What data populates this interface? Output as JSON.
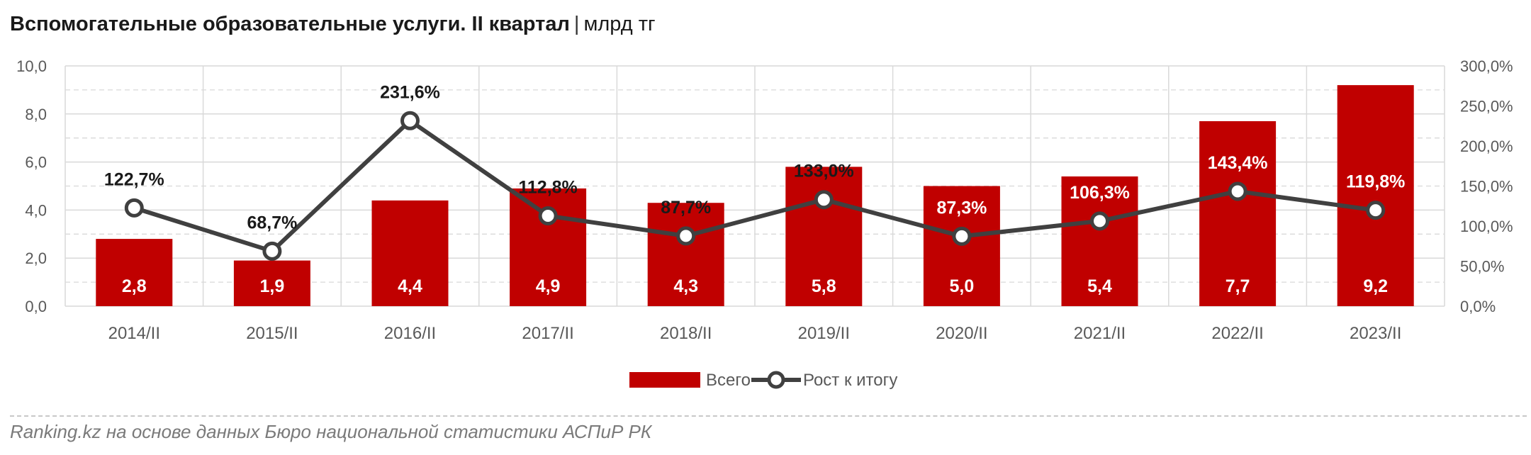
{
  "header": {
    "title": "Вспомогательные образовательные услуги. II квартал",
    "separator": "|",
    "unit": "млрд тг"
  },
  "footer": {
    "source": "Ranking.kz на основе данных Бюро национальной статистики АСПиР РК"
  },
  "colors": {
    "bar": "#c00000",
    "line": "#404040",
    "marker_fill": "#ffffff",
    "grid": "#d9d9d9",
    "text": "#595959"
  },
  "chart_data": {
    "type": "bar",
    "categories": [
      "2014/II",
      "2015/II",
      "2016/II",
      "2017/II",
      "2018/II",
      "2019/II",
      "2020/II",
      "2021/II",
      "2022/II",
      "2023/II"
    ],
    "series": [
      {
        "name": "Всего",
        "type": "bar",
        "axis": "left",
        "values": [
          2.8,
          1.9,
          4.4,
          4.9,
          4.3,
          5.8,
          5.0,
          5.4,
          7.7,
          9.2
        ],
        "labels": [
          "2,8",
          "1,9",
          "4,4",
          "4,9",
          "4,3",
          "5,8",
          "5,0",
          "5,4",
          "7,7",
          "9,2"
        ]
      },
      {
        "name": "Рост к итогу",
        "type": "line",
        "axis": "right",
        "values": [
          122.7,
          68.7,
          231.6,
          112.8,
          87.7,
          133.0,
          87.3,
          106.3,
          143.4,
          119.8
        ],
        "labels": [
          "122,7%",
          "68,7%",
          "231,6%",
          "112,8%",
          "87,7%",
          "133,0%",
          "87,3%",
          "106,3%",
          "143,4%",
          "119,8%"
        ]
      }
    ],
    "y_left": {
      "min": 0,
      "max": 10,
      "step": 2,
      "tick_labels": [
        "0,0",
        "2,0",
        "4,0",
        "6,0",
        "8,0",
        "10,0"
      ]
    },
    "y_right": {
      "min": 0,
      "max": 300,
      "step": 50,
      "tick_labels": [
        "0,0%",
        "50,0%",
        "100,0%",
        "150,0%",
        "200,0%",
        "250,0%",
        "300,0%"
      ]
    },
    "grid": true,
    "legend_position": "bottom"
  }
}
